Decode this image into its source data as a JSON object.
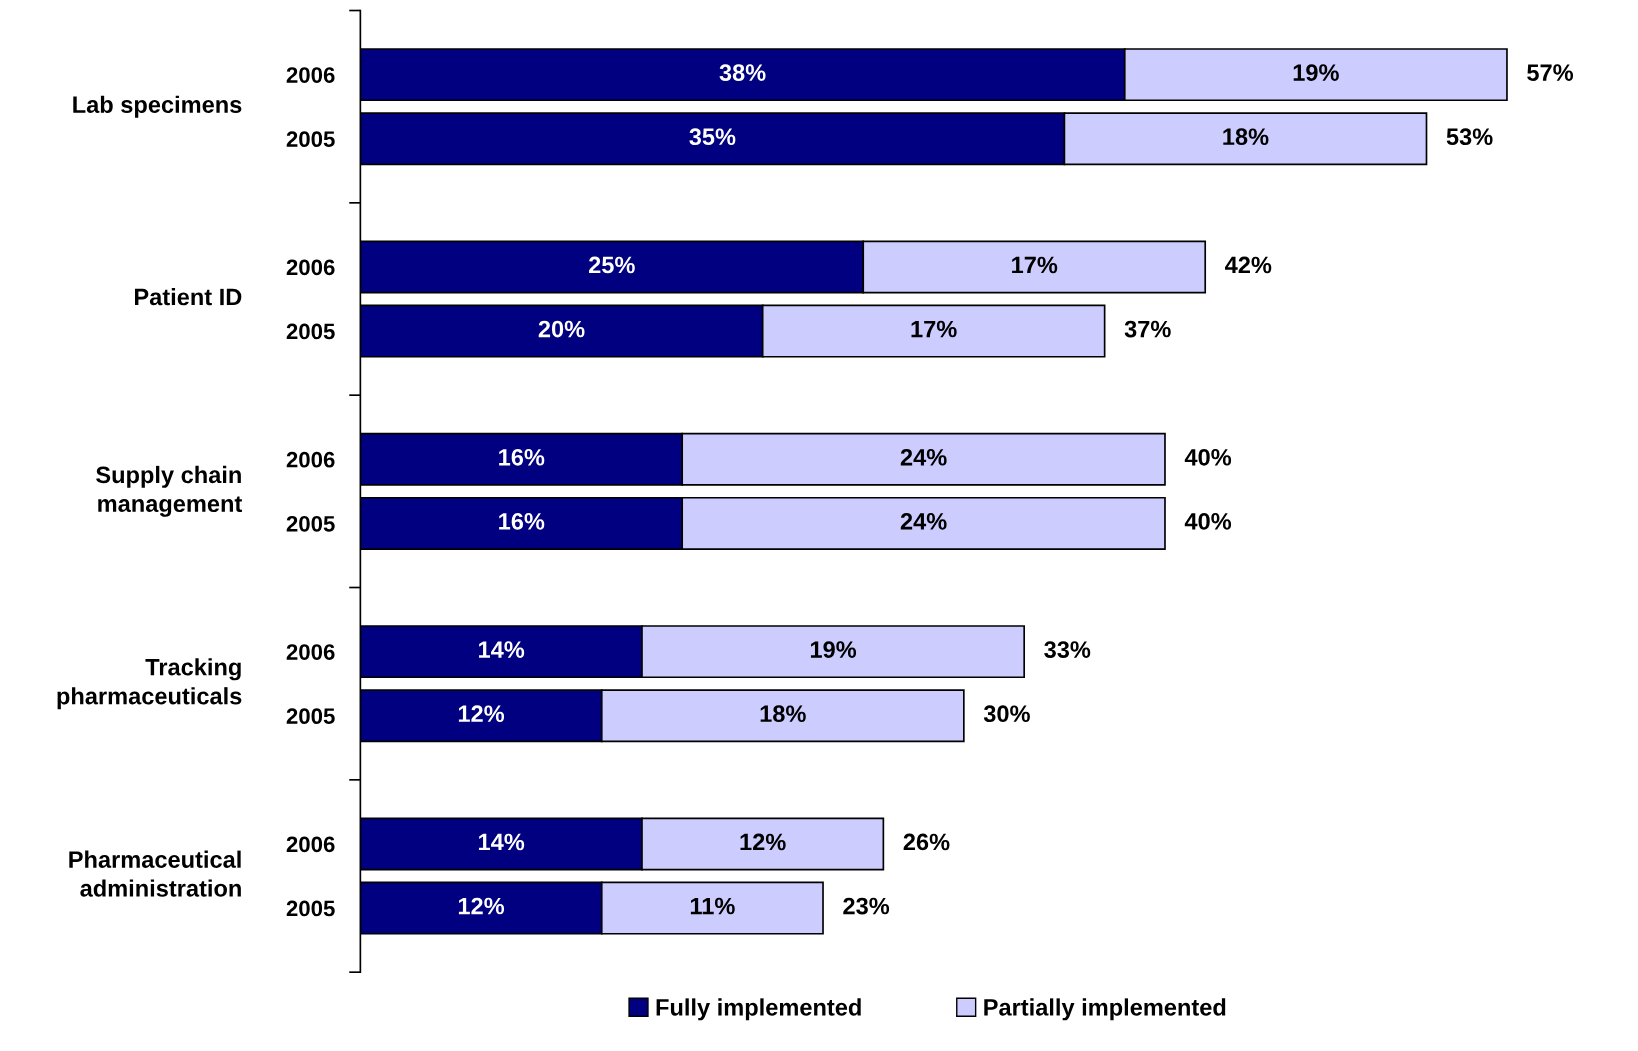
{
  "chart_data": {
    "type": "bar",
    "orientation": "horizontal",
    "stacked": true,
    "categories": [
      "2006",
      "2005",
      "2006",
      "2005",
      "2006",
      "2005",
      "2006",
      "2005",
      "2006",
      "2005"
    ],
    "annotations": [
      "Lab specimens",
      "Patient ID",
      "Supply chain\nmanagement",
      "Tracking\npharmaceuticals",
      "Pharmaceutical\nadministration"
    ],
    "series": [
      {
        "name": "Fully implemented",
        "color": "#000080",
        "values": [
          38,
          35,
          25,
          20,
          16,
          16,
          14,
          12,
          14,
          12
        ],
        "value_labels": [
          "38%",
          "35%",
          "25%",
          "20%",
          "16%",
          "16%",
          "14%",
          "12%",
          "14%",
          "12%"
        ]
      },
      {
        "name": "Partially implemented",
        "color": "#ccccff",
        "values": [
          19,
          18,
          17,
          17,
          24,
          24,
          19,
          18,
          12,
          11
        ],
        "value_labels": [
          "19%",
          "18%",
          "17%",
          "17%",
          "24%",
          "24%",
          "19%",
          "18%",
          "12%",
          "11%"
        ]
      }
    ],
    "totals": [
      "57%",
      "53%",
      "42%",
      "37%",
      "40%",
      "40%",
      "33%",
      "30%",
      "26%",
      "23%"
    ],
    "legend": "bottom"
  }
}
